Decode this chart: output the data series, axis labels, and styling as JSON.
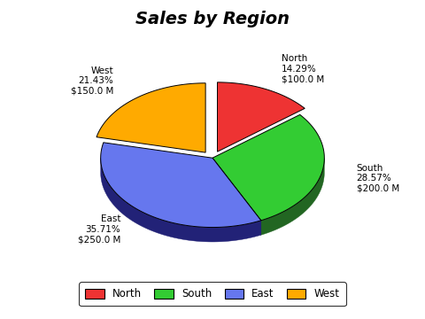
{
  "title": "Sales by Region",
  "regions": [
    "North",
    "South",
    "East",
    "West"
  ],
  "values": [
    100,
    200,
    250,
    150
  ],
  "percentages": [
    14.29,
    28.57,
    35.71,
    21.43
  ],
  "colors": [
    "#EE3333",
    "#33CC33",
    "#6677EE",
    "#FFAA00"
  ],
  "dark_colors": [
    "#882222",
    "#226622",
    "#222277",
    "#886600"
  ],
  "explode": [
    0.1,
    0.0,
    0.0,
    0.1
  ],
  "legend_labels": [
    "North",
    "South",
    "East",
    "West"
  ],
  "background_color": "#FFFFFF",
  "title_fontsize": 14,
  "title_style": "italic",
  "title_weight": "bold"
}
